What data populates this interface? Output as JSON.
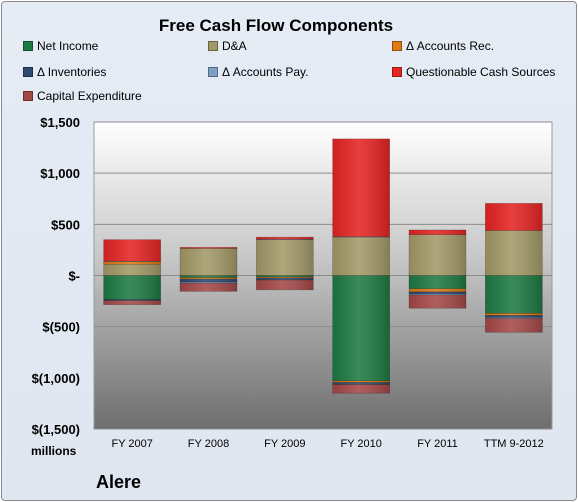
{
  "chart_data": {
    "type": "bar",
    "title": "Free Cash Flow Components",
    "units_label": "millions",
    "company": "Alere",
    "categories": [
      "FY 2007",
      "FY 2008",
      "FY 2009",
      "FY 2010",
      "FY 2011",
      "TTM 9-2012"
    ],
    "ylim": [
      -1500,
      1500
    ],
    "yticks": [
      1500,
      1000,
      500,
      0,
      -500,
      -1000,
      -1500
    ],
    "ytick_labels": [
      "$1,500",
      "$1,000",
      "$500",
      "$-",
      "$(500)",
      "$(1,000)",
      "$(1,500)"
    ],
    "grid": true,
    "legend_position": "top",
    "stacked": true,
    "series": [
      {
        "name": "Net Income",
        "color": "#1e7a44",
        "values": [
          -235,
          -20,
          -15,
          -1030,
          -130,
          -370
        ]
      },
      {
        "name": "D&A",
        "color": "#a39968",
        "values": [
          110,
          265,
          350,
          375,
          400,
          440
        ]
      },
      {
        "name": "Δ Accounts Rec.",
        "color": "#e07a10",
        "values": [
          25,
          -15,
          -10,
          -15,
          -30,
          -20
        ]
      },
      {
        "name": "Δ Inventories",
        "color": "#2e4a72",
        "values": [
          -10,
          -30,
          -20,
          -20,
          -20,
          -20
        ]
      },
      {
        "name": "Δ Accounts Pay.",
        "color": "#7e9ec8",
        "values": [
          5,
          -10,
          5,
          5,
          -10,
          -10
        ]
      },
      {
        "name": "Questionable Cash Sources",
        "color": "#e52424",
        "values": [
          210,
          10,
          20,
          955,
          45,
          265
        ]
      },
      {
        "name": "Capital Expenditure",
        "color": "#a54848",
        "values": [
          -40,
          -80,
          -95,
          -85,
          -130,
          -135
        ]
      }
    ]
  }
}
